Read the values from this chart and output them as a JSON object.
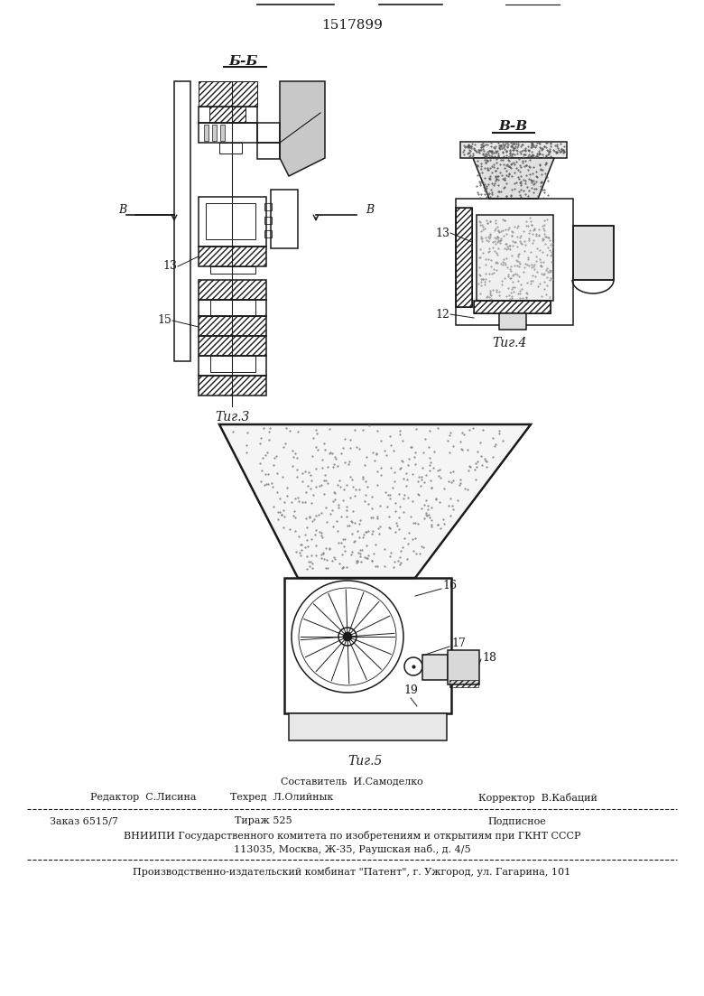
{
  "patent_number": "1517899",
  "fig3_label": "Τиг.3",
  "fig4_label": "Τиг.4",
  "fig5_label": "Τиг.5",
  "section_bb_label": "Б-Б",
  "section_vv_label": "В-В",
  "label_13a": "13",
  "label_15": "15",
  "label_12": "12",
  "label_13b": "13",
  "label_16": "16",
  "label_17": "17",
  "label_18": "18",
  "label_19": "19",
  "footer_composer": "Составитель  И.Самоделко",
  "footer_editor": "Редактор  С.Лисина",
  "footer_techred": "Техред  Л.Олийнык",
  "footer_corrector": "Корректор  В.Кабаций",
  "footer_order": "Заказ 6515/7",
  "footer_tirazh": "Тираж 525",
  "footer_podpisnoe": "Подписное",
  "footer_vniipи": "ВНИИПИ Государственного комитета по изобретениям и открытиям при ГКНТ СССР",
  "footer_address": "113035, Москва, Ж-35, Раушская наб., д. 4/5",
  "footer_patent": "Производственно-издательский комбинат \"Патент\", г. Ужгород, ул. Гагарина, 101",
  "bg_color": "#ffffff",
  "lc": "#1a1a1a"
}
